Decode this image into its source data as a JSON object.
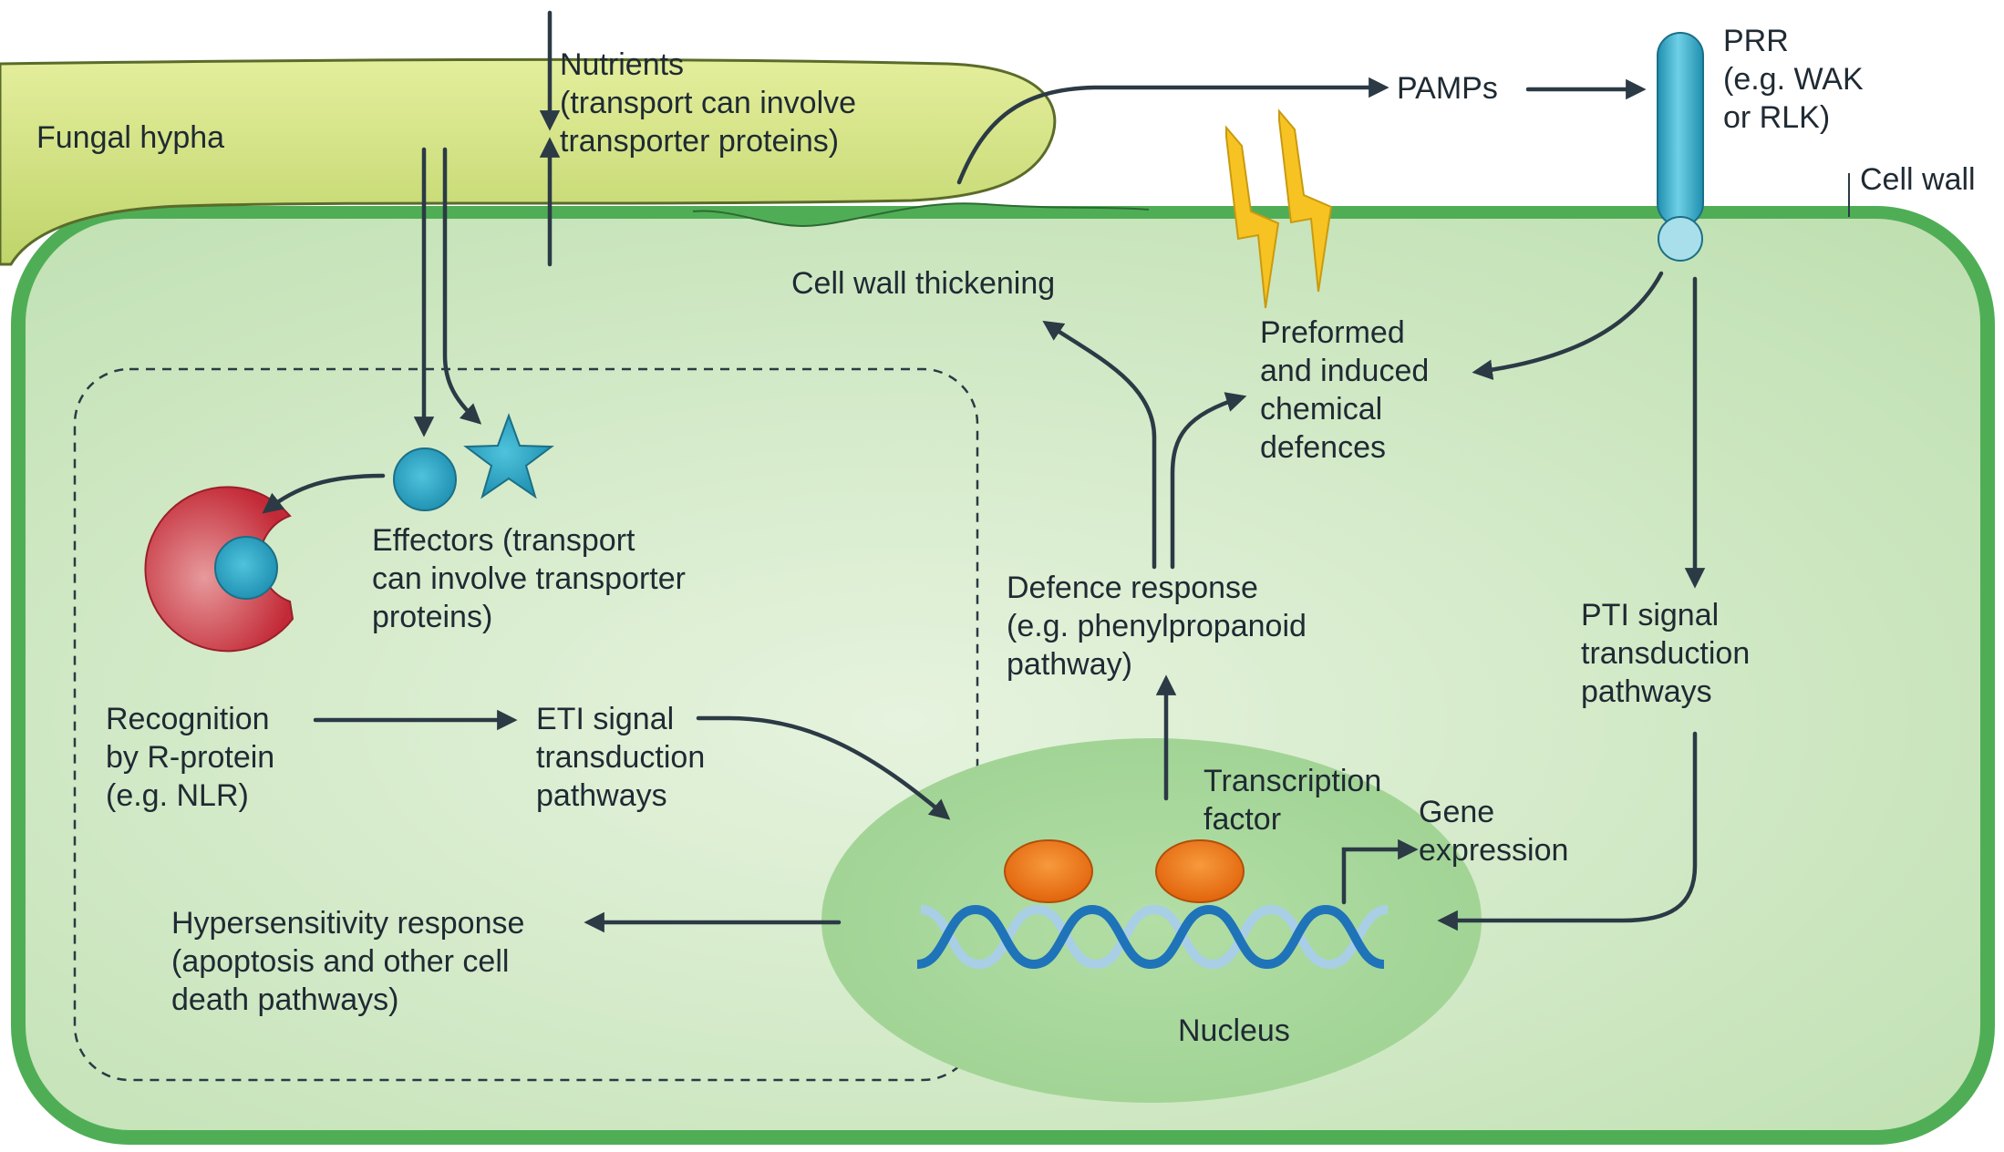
{
  "labels": {
    "fungal_hypha": "Fungal hypha",
    "nutrients": [
      "Nutrients",
      "(transport can involve",
      "transporter proteins)"
    ],
    "pamps": "PAMPs",
    "prr": [
      "PRR",
      "(e.g. WAK",
      "or RLK)"
    ],
    "cell_wall": "Cell wall",
    "cell_wall_thickening": "Cell wall thickening",
    "chemical_defences": [
      "Preformed",
      "and induced",
      "chemical",
      "defences"
    ],
    "effectors": [
      "Effectors (transport",
      "can involve transporter",
      "proteins)"
    ],
    "defence_response": [
      "Defence response",
      "(e.g. phenylpropanoid",
      "pathway)"
    ],
    "pti": [
      "PTI signal",
      "transduction",
      "pathways"
    ],
    "recognition": [
      "Recognition",
      "by R-protein",
      "(e.g. NLR)"
    ],
    "eti": [
      "ETI signal",
      "transduction",
      "pathways"
    ],
    "transcription_factor": [
      "Transcription",
      "factor"
    ],
    "gene_expression": [
      "Gene",
      "expression"
    ],
    "hypersensitivity": [
      "Hypersensitivity response",
      "(apoptosis and other cell",
      "death pathways)"
    ],
    "nucleus": "Nucleus"
  },
  "colors": {
    "cell_fill": "#cfe8c4",
    "cell_border": "#4fae55",
    "hypha_fill": "#d4e38a",
    "nucleus_fill": "#a6d69a",
    "effector_blue": "#2aa0bf",
    "r_protein_red": "#c8303c",
    "tf_orange": "#ef7b14",
    "lightning": "#f6c322",
    "dna_dark": "#1f73b8",
    "dna_light": "#a9cfe6",
    "arrow": "#2b3a45"
  }
}
